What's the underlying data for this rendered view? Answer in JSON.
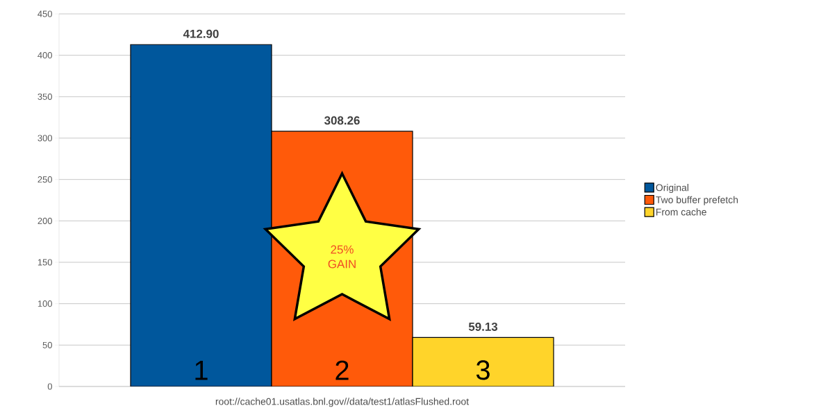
{
  "chart_data": {
    "type": "bar",
    "categories": [
      null
    ],
    "xlabel": "root://cache01.usatlas.bnl.gov//data/test1/atlasFlushed.root",
    "series": [
      {
        "name": "Original",
        "color": "#00579c",
        "values": [
          412.9
        ],
        "value_labels": [
          "412.90"
        ]
      },
      {
        "name": "Two buffer prefetch",
        "color": "#ff5a0a",
        "values": [
          308.26
        ],
        "value_labels": [
          "308.26"
        ]
      },
      {
        "name": "From cache",
        "color": "#ffd42a",
        "values": [
          59.13
        ],
        "value_labels": [
          "59.13"
        ]
      }
    ],
    "ylim": [
      0,
      450
    ],
    "yticks": [
      0,
      50,
      100,
      150,
      200,
      250,
      300,
      350,
      400,
      450
    ],
    "grid": "y",
    "legend": "right",
    "tick_labels": "y",
    "annotations": [
      "25% GAIN",
      "1",
      "2",
      "3"
    ]
  }
}
